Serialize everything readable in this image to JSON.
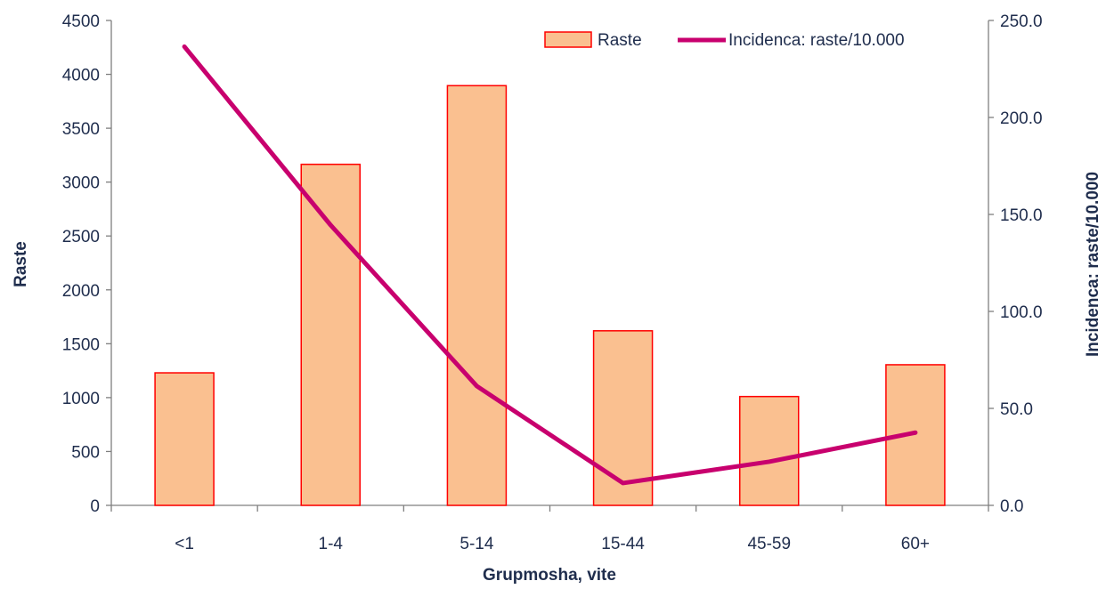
{
  "chart_data": {
    "type": "bar",
    "categories": [
      "<1",
      "1-4",
      "5-14",
      "15-44",
      "45-59",
      "60+"
    ],
    "series": [
      {
        "name": "Raste",
        "kind": "bar",
        "axis": "left",
        "values": [
          1230,
          3165,
          3895,
          1620,
          1010,
          1305
        ]
      },
      {
        "name": "Incidenca: raste/10.000",
        "kind": "line",
        "axis": "right",
        "values": [
          236.5,
          144.5,
          61.5,
          11.5,
          22.5,
          37.5
        ]
      }
    ],
    "xlabel": "Grupmosha, vite",
    "ylabel": "Raste",
    "y2label": "Incidenca: raste/10.000",
    "ylim": [
      0,
      4500
    ],
    "y2lim": [
      0,
      250
    ],
    "yticks": [
      "0",
      "500",
      "1000",
      "1500",
      "2000",
      "2500",
      "3000",
      "3500",
      "4000",
      "4500"
    ],
    "y2ticks": [
      "0.0",
      "50.0",
      "100.0",
      "150.0",
      "200.0",
      "250.0"
    ],
    "legend_position": "top-right",
    "grid": false,
    "colors": {
      "bar_fill": "#fac090",
      "bar_stroke": "#ff0000",
      "line": "#c8006e",
      "axis": "#7f7f7f",
      "text": "#1f2d4d"
    }
  }
}
